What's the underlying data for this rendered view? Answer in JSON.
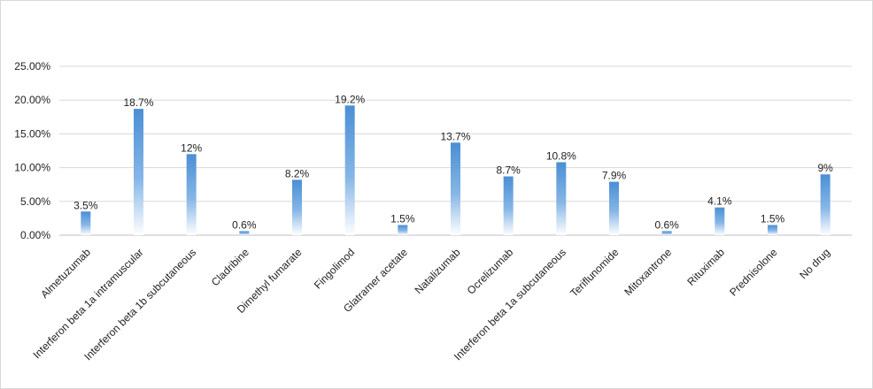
{
  "chart_data": {
    "type": "bar",
    "categories": [
      "Almetuzumab",
      "Interferon beta 1a intramuscular",
      "Interferon beta 1b subcutaneous",
      "Cladribine",
      "Dimethyl fumarate",
      "Fingolimod",
      "Glatramer acetate",
      "Natalizumab",
      "Ocrelizumab",
      "Interferon beta 1a subcutaneous",
      "Teriflunomide",
      "Mitoxantrone",
      "Rituximab",
      "Prednisolone",
      "No drug"
    ],
    "values": [
      3.5,
      18.7,
      12,
      0.6,
      8.2,
      19.2,
      1.5,
      13.7,
      8.7,
      10.8,
      7.9,
      0.6,
      4.1,
      1.5,
      9
    ],
    "data_labels": [
      "3.5%",
      "18.7%",
      "12%",
      "0.6%",
      "8.2%",
      "19.2%",
      "1.5%",
      "13.7%",
      "8.7%",
      "10.8%",
      "7.9%",
      "0.6%",
      "4.1%",
      "1.5%",
      "9%"
    ],
    "y_ticks": [
      0,
      5,
      10,
      15,
      20,
      25
    ],
    "y_tick_labels": [
      "0.00%",
      "5.00%",
      "10.00%",
      "15.00%",
      "20.00%",
      "25.00%"
    ],
    "ylim": [
      0,
      25
    ],
    "title": "",
    "xlabel": "",
    "ylabel": "",
    "grid": true,
    "legend": "none",
    "colors": {
      "bar_top": "#4a8fd4",
      "bar_bottom": "#ffffff",
      "grid": "#d9d9d9",
      "axis": "#bfbfbf"
    }
  }
}
